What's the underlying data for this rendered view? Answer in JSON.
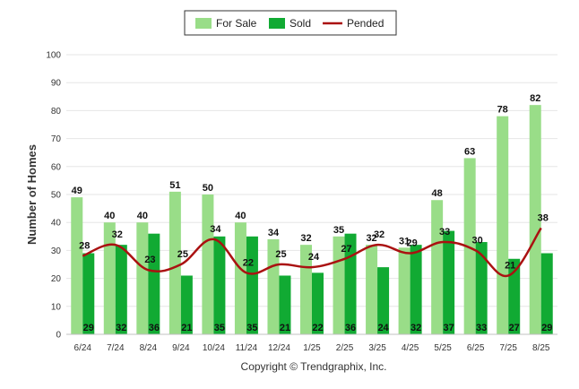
{
  "chart_data": {
    "type": "bar",
    "categories": [
      "6/24",
      "7/24",
      "8/24",
      "9/24",
      "10/24",
      "11/24",
      "12/24",
      "1/25",
      "2/25",
      "3/25",
      "4/25",
      "5/25",
      "6/25",
      "7/25",
      "8/25"
    ],
    "series": [
      {
        "name": "For Sale",
        "type": "bar",
        "color": "#99dd88",
        "values": [
          49,
          40,
          40,
          51,
          50,
          40,
          34,
          32,
          35,
          32,
          31,
          48,
          63,
          78,
          82
        ]
      },
      {
        "name": "Sold",
        "type": "bar",
        "color": "#11aa33",
        "values": [
          29,
          32,
          36,
          21,
          35,
          35,
          21,
          22,
          36,
          24,
          32,
          37,
          33,
          27,
          29
        ]
      },
      {
        "name": "Pended",
        "type": "line",
        "color": "#aa1111",
        "values": [
          28,
          32,
          23,
          25,
          34,
          22,
          25,
          24,
          27,
          32,
          29,
          33,
          30,
          21,
          38
        ]
      }
    ],
    "ylabel": "Number of Homes",
    "xlabel": "",
    "ylim": [
      0,
      100
    ],
    "yticks": [
      0,
      10,
      20,
      30,
      40,
      50,
      60,
      70,
      80,
      90,
      100
    ],
    "grid": true,
    "legend_position": "top-center"
  },
  "footer": {
    "copyright": "Copyright © Trendgraphix, Inc."
  }
}
